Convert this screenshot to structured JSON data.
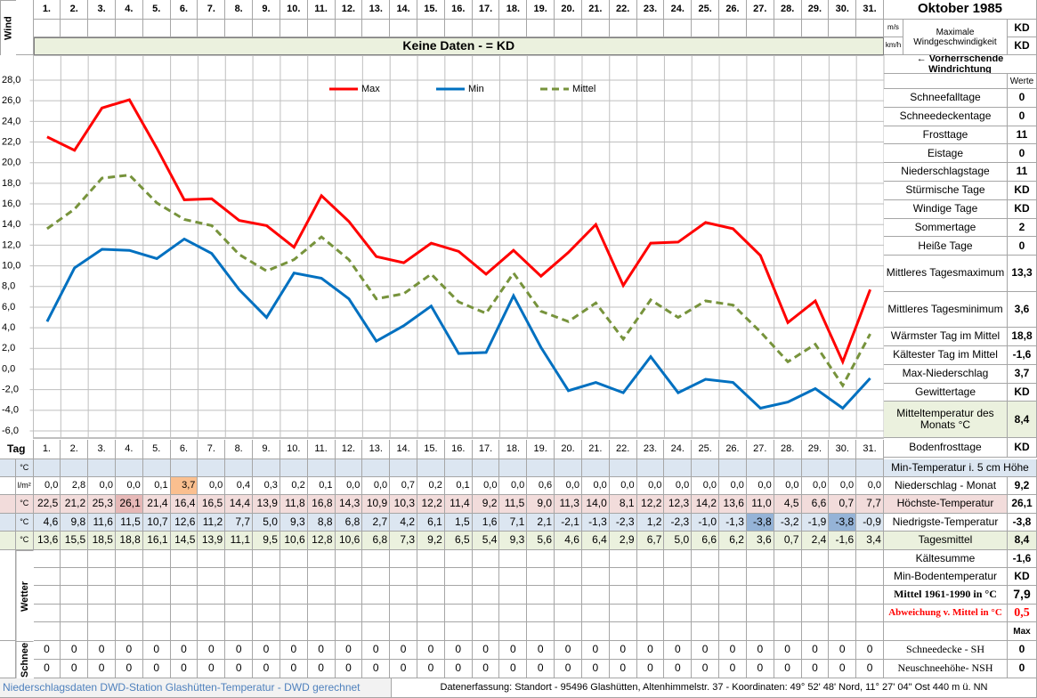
{
  "header": {
    "month": "Oktober 1985",
    "wind_label": "Wind",
    "unit_ms": "m/s",
    "unit_kmh": "km/h",
    "wind_max_label": "Maximale Windgeschwindigkeit",
    "wind_ms_value": "KD",
    "wind_kmh_value": "KD",
    "no_data": "Keine Daten -  = KD",
    "wind_direction": "← Vorherrschende Windrichtung",
    "values_header": "Werte"
  },
  "chart_data": {
    "type": "line",
    "categories": [
      "1.",
      "2.",
      "3.",
      "4.",
      "5.",
      "6.",
      "7.",
      "8.",
      "9.",
      "10.",
      "11.",
      "12.",
      "13.",
      "14.",
      "15.",
      "16.",
      "17.",
      "18.",
      "19.",
      "20.",
      "21.",
      "22.",
      "23.",
      "24.",
      "25.",
      "26.",
      "27.",
      "28.",
      "29.",
      "30.",
      "31."
    ],
    "series": [
      {
        "name": "Max",
        "color": "#ff0000",
        "line_style": "solid",
        "values": [
          22.5,
          21.2,
          25.3,
          26.1,
          21.4,
          16.4,
          16.5,
          14.4,
          13.9,
          11.8,
          16.8,
          14.3,
          10.9,
          10.3,
          12.2,
          11.4,
          9.2,
          11.5,
          9.0,
          11.3,
          14.0,
          8.1,
          12.2,
          12.3,
          14.2,
          13.6,
          11.0,
          4.5,
          6.6,
          0.7,
          7.7
        ],
        "value_labels": [
          "22,5",
          "21,2",
          "25,3",
          "26,1",
          "21,4",
          "16,4",
          "16,5",
          "14,4",
          "13,9",
          "11,8",
          "16,8",
          "14,3",
          "10,9",
          "10,3",
          "12,2",
          "11,4",
          "9,2",
          "11,5",
          "9,0",
          "11,3",
          "14,0",
          "8,1",
          "12,2",
          "12,3",
          "14,2",
          "13,6",
          "11,0",
          "4,5",
          "6,6",
          "0,7",
          "7,7"
        ]
      },
      {
        "name": "Min",
        "color": "#0070c0",
        "line_style": "solid",
        "values": [
          4.6,
          9.8,
          11.6,
          11.5,
          10.7,
          12.6,
          11.2,
          7.7,
          5.0,
          9.3,
          8.8,
          6.8,
          2.7,
          4.2,
          6.1,
          1.5,
          1.6,
          7.1,
          2.1,
          -2.1,
          -1.3,
          -2.3,
          1.2,
          -2.3,
          -1.0,
          -1.3,
          -3.8,
          -3.2,
          -1.9,
          -3.8,
          -0.9
        ],
        "value_labels": [
          "4,6",
          "9,8",
          "11,6",
          "11,5",
          "10,7",
          "12,6",
          "11,2",
          "7,7",
          "5,0",
          "9,3",
          "8,8",
          "6,8",
          "2,7",
          "4,2",
          "6,1",
          "1,5",
          "1,6",
          "7,1",
          "2,1",
          "-2,1",
          "-1,3",
          "-2,3",
          "1,2",
          "-2,3",
          "-1,0",
          "-1,3",
          "-3,8",
          "-3,2",
          "-1,9",
          "-3,8",
          "-0,9"
        ]
      },
      {
        "name": "Mittel",
        "color": "#77933c",
        "line_style": "dashed",
        "values": [
          13.6,
          15.5,
          18.5,
          18.8,
          16.1,
          14.5,
          13.9,
          11.1,
          9.5,
          10.6,
          12.8,
          10.6,
          6.8,
          7.3,
          9.2,
          6.5,
          5.4,
          9.3,
          5.6,
          4.6,
          6.4,
          2.9,
          6.7,
          5.0,
          6.6,
          6.2,
          3.6,
          0.7,
          2.4,
          -1.6,
          3.4
        ],
        "value_labels": [
          "13,6",
          "15,5",
          "18,5",
          "18,8",
          "16,1",
          "14,5",
          "13,9",
          "11,1",
          "9,5",
          "10,6",
          "12,8",
          "10,6",
          "6,8",
          "7,3",
          "9,2",
          "6,5",
          "5,4",
          "9,3",
          "5,6",
          "4,6",
          "6,4",
          "2,9",
          "6,7",
          "5,0",
          "6,6",
          "6,2",
          "3,6",
          "0,7",
          "2,4",
          "-1,6",
          "3,4"
        ]
      }
    ],
    "ylim": [
      -6,
      28
    ],
    "yticks": [
      {
        "value": -6,
        "label": "-6,0"
      },
      {
        "value": -4,
        "label": "-4,0"
      },
      {
        "value": -2,
        "label": "-2,0"
      },
      {
        "value": 0,
        "label": "0,0"
      },
      {
        "value": 2,
        "label": "2,0"
      },
      {
        "value": 4,
        "label": "4,0"
      },
      {
        "value": 6,
        "label": "6,0"
      },
      {
        "value": 8,
        "label": "8,0"
      },
      {
        "value": 10,
        "label": "10,0"
      },
      {
        "value": 12,
        "label": "12,0"
      },
      {
        "value": 14,
        "label": "14,0"
      },
      {
        "value": 16,
        "label": "16,0"
      },
      {
        "value": 18,
        "label": "18,0"
      },
      {
        "value": 20,
        "label": "20,0"
      },
      {
        "value": 22,
        "label": "22,0"
      },
      {
        "value": 24,
        "label": "24,0"
      },
      {
        "value": 26,
        "label": "26,0"
      },
      {
        "value": 28,
        "label": "28,0"
      }
    ],
    "grid": true,
    "legend": "top"
  },
  "stats": [
    {
      "label": "Schneefalltage",
      "value": "0"
    },
    {
      "label": "Schneedeckentage",
      "value": "0"
    },
    {
      "label": "Frosttage",
      "value": "11"
    },
    {
      "label": "Eistage",
      "value": "0"
    },
    {
      "label": "Niederschlagstage",
      "value": "11"
    },
    {
      "label": "Stürmische Tage",
      "value": "KD"
    },
    {
      "label": "Windige Tage",
      "value": "KD"
    },
    {
      "label": "Sommertage",
      "value": "2"
    },
    {
      "label": "Heiße Tage",
      "value": "0"
    },
    {
      "label": "Mittleres Tagesmaximum",
      "value": "13,3"
    },
    {
      "label": "Mittleres Tagesminimum",
      "value": "3,6"
    },
    {
      "label": "Wärmster Tag im Mittel",
      "value": "18,8"
    },
    {
      "label": "Kältester Tag im Mittel",
      "value": "-1,6"
    },
    {
      "label": "Max-Niederschlag",
      "value": "3,7"
    },
    {
      "label": "Gewittertage",
      "value": "KD"
    },
    {
      "label": "Mitteltemperatur des Monats °C",
      "value": "8,4"
    },
    {
      "label": "Bodenfrosttage",
      "value": "KD"
    }
  ],
  "table": {
    "day_label": "Tag",
    "rows": [
      {
        "unit": "°C",
        "label": "Min-Temperatur i. 5 cm Höhe"
      },
      {
        "unit": "l/m²",
        "label": "Niederschlag - Monat",
        "total": "9,2",
        "values": [
          "0,0",
          "2,8",
          "0,0",
          "0,0",
          "0,1",
          "3,7",
          "0,0",
          "0,4",
          "0,3",
          "0,2",
          "0,1",
          "0,0",
          "0,0",
          "0,7",
          "0,2",
          "0,1",
          "0,0",
          "0,0",
          "0,6",
          "0,0",
          "0,0",
          "0,0",
          "0,0",
          "0,0",
          "0,0",
          "0,0",
          "0,0",
          "0,0",
          "0,0",
          "0,0",
          "0,0"
        ]
      },
      {
        "unit": "°C",
        "label": "Höchste-Temperatur",
        "total": "26,1"
      },
      {
        "unit": "°C",
        "label": "Niedrigste-Temperatur",
        "total": "-3,8"
      },
      {
        "unit": "°C",
        "label": "Tagesmittel",
        "total": "8,4"
      }
    ],
    "weather_label": "Wetter",
    "extra": [
      {
        "label": "Kältesumme",
        "value": "-1,6"
      },
      {
        "label": "Min-Bodentemperatur",
        "value": "KD"
      },
      {
        "label": "Mittel 1961-1990 in °C",
        "value": "7,9"
      },
      {
        "label": "Abweichung v. Mittel in °C",
        "value": "0,5"
      },
      {
        "value": "Max"
      }
    ],
    "snow_label": "Schnee",
    "snow": [
      {
        "label": "Schneedecke -  SH",
        "total": "0",
        "values": [
          "0",
          "0",
          "0",
          "0",
          "0",
          "0",
          "0",
          "0",
          "0",
          "0",
          "0",
          "0",
          "0",
          "0",
          "0",
          "0",
          "0",
          "0",
          "0",
          "0",
          "0",
          "0",
          "0",
          "0",
          "0",
          "0",
          "0",
          "0",
          "0",
          "0",
          "0"
        ]
      },
      {
        "label": "Neuschneehöhe- NSH",
        "total": "0",
        "values": [
          "0",
          "0",
          "0",
          "0",
          "0",
          "0",
          "0",
          "0",
          "0",
          "0",
          "0",
          "0",
          "0",
          "0",
          "0",
          "0",
          "0",
          "0",
          "0",
          "0",
          "0",
          "0",
          "0",
          "0",
          "0",
          "0",
          "0",
          "0",
          "0",
          "0",
          "0"
        ]
      }
    ]
  },
  "footer": {
    "source": "Niederschlagsdaten DWD-Station Glashütten-Temperatur -  DWD gerechnet",
    "location": "Datenerfassung: Standort -  95496 Glashütten, Altenhimmelstr. 37 - Koordinaten:  49° 52' 48' Nord,   11° 27' 04\" Ost  440 m ü. NN"
  }
}
